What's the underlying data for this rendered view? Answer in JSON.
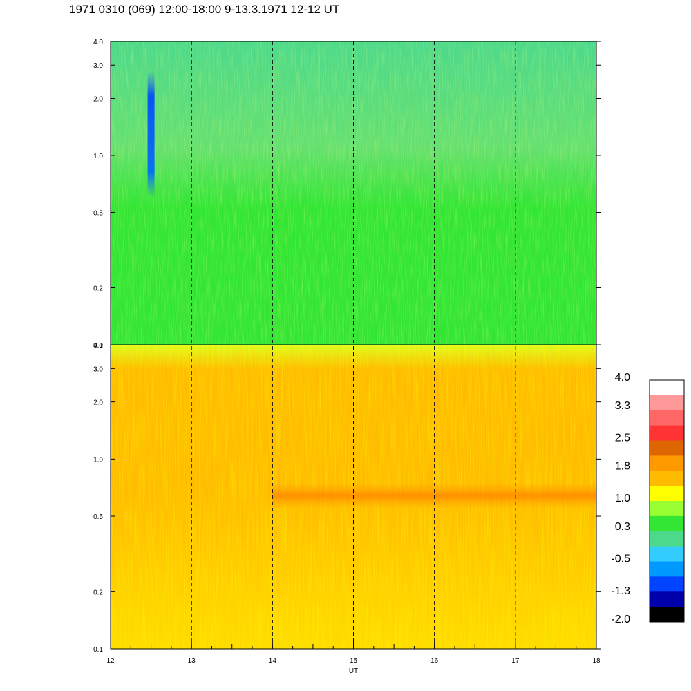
{
  "title": "1971 0310 (069) 12:00-18:00 9-13.3.1971  12-12 UT",
  "chart_data": [
    {
      "type": "heatmap",
      "panel": "upper",
      "yscale": "log",
      "ylim": [
        0.1,
        4.0
      ],
      "yticks": [
        "4.0",
        "3.0",
        "2.0",
        "1.0",
        "0.5",
        "0.2",
        "0.1"
      ],
      "ytick_values": [
        4.0,
        3.0,
        2.0,
        1.0,
        0.5,
        0.2,
        0.1
      ],
      "xlim": [
        12,
        18
      ],
      "dominant_colors": [
        "#33e633",
        "#4dd98c",
        "#99ff33",
        "#33ccff"
      ],
      "features": [
        {
          "type": "dark-blue vertical streak",
          "x": 12.5,
          "y_range": [
            0.6,
            2.8
          ]
        }
      ]
    },
    {
      "type": "heatmap",
      "panel": "lower",
      "yscale": "log",
      "ylim": [
        0.1,
        4.0
      ],
      "yticks": [
        "4.0",
        "3.0",
        "2.0",
        "1.0",
        "0.5",
        "0.2",
        "0.1"
      ],
      "ytick_values": [
        4.0,
        3.0,
        2.0,
        1.0,
        0.5,
        0.2,
        0.1
      ],
      "xlim": [
        12,
        18
      ],
      "dominant_colors": [
        "#ffbb00",
        "#ff9900",
        "#ffff00",
        "#99ff33"
      ],
      "features": [
        {
          "type": "orange horizontal band",
          "x_range": [
            14.0,
            18.0
          ],
          "y_range": [
            0.55,
            0.75
          ]
        }
      ]
    }
  ],
  "x_axis": {
    "label": "UT",
    "ticks": [
      "12",
      "13",
      "14",
      "15",
      "16",
      "17",
      "18"
    ],
    "tick_values": [
      12,
      13,
      14,
      15,
      16,
      17,
      18
    ],
    "dashed_lines_at": [
      13,
      14,
      15,
      16,
      17
    ]
  },
  "colorbar": {
    "labels": [
      "4.0",
      "3.3",
      "2.5",
      "1.8",
      "1.0",
      "0.3",
      "-0.5",
      "-1.3",
      "-2.0"
    ],
    "label_values": [
      4.0,
      3.3,
      2.5,
      1.8,
      1.0,
      0.3,
      -0.5,
      -1.3,
      -2.0
    ],
    "range": [
      -2.0,
      4.0
    ],
    "colors_top_to_bottom": [
      "#ffffff",
      "#ff9999",
      "#ff6666",
      "#ff3333",
      "#dd6600",
      "#ff9900",
      "#ffbb00",
      "#ffff00",
      "#99ff33",
      "#33e633",
      "#4dd98c",
      "#33ccff",
      "#0099ff",
      "#0044ff",
      "#0000aa",
      "#000000"
    ]
  }
}
